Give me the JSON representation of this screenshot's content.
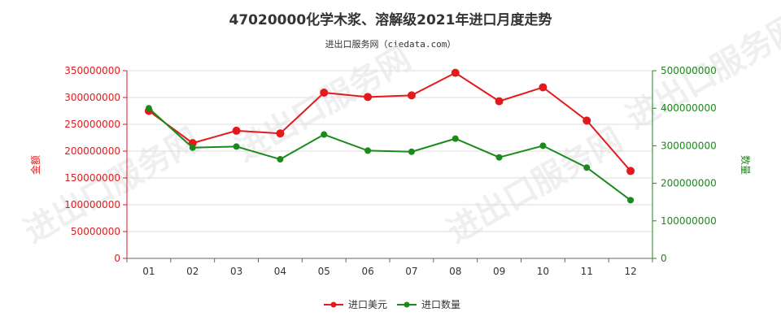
{
  "title": "47020000化学木浆、溶解级2021年进口月度走势",
  "subtitle": "进出口服务网（ciedata.com）",
  "watermark": "进出口服务网",
  "chart_data": {
    "type": "line",
    "categories": [
      "01",
      "02",
      "03",
      "04",
      "05",
      "06",
      "07",
      "08",
      "09",
      "10",
      "11",
      "12"
    ],
    "y_left": {
      "label": "金额",
      "range": [
        0,
        350000000
      ],
      "ticks": [
        "0",
        "50000000",
        "100000000",
        "150000000",
        "200000000",
        "250000000",
        "300000000",
        "350000000"
      ],
      "color": "#e31a1c"
    },
    "y_right": {
      "label": "数量",
      "range": [
        0,
        500000000
      ],
      "ticks": [
        "0",
        "100000000",
        "200000000",
        "300000000",
        "400000000",
        "500000000"
      ],
      "color": "#1a8a1a"
    },
    "series": [
      {
        "name": "进口美元",
        "axis": "left",
        "color": "#e31a1c",
        "values": [
          275000000,
          215000000,
          238000000,
          233000000,
          309000000,
          301000000,
          304000000,
          346000000,
          293000000,
          319000000,
          257000000,
          163000000
        ]
      },
      {
        "name": "进口数量",
        "axis": "right",
        "color": "#1a8a1a",
        "values": [
          400000000,
          295000000,
          298000000,
          264000000,
          330000000,
          287000000,
          284000000,
          319000000,
          269000000,
          300000000,
          242000000,
          155000000
        ]
      }
    ],
    "grid": true,
    "legend_position": "bottom-center"
  }
}
